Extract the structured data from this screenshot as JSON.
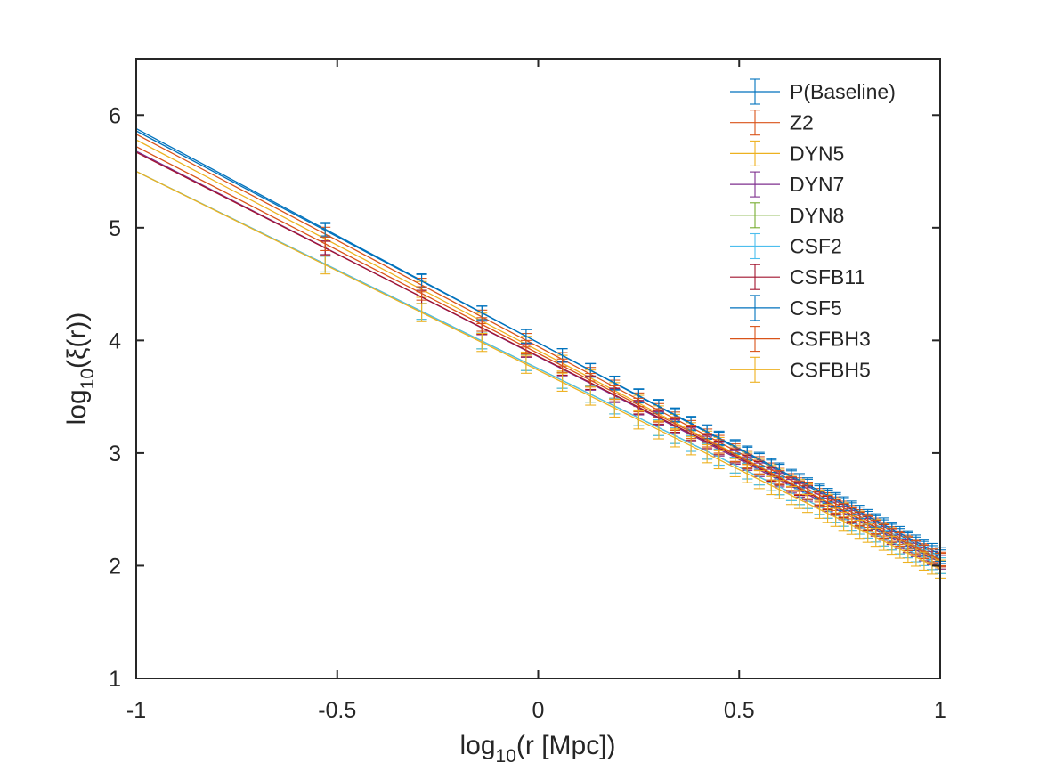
{
  "chart_data": {
    "type": "line",
    "title": "",
    "xlabel_main": "log",
    "xlabel_sub": "10",
    "xlabel_rest": "(r [Mpc])",
    "ylabel_main": "log",
    "ylabel_sub": "10",
    "ylabel_rest": "(ξ(r))",
    "xlim": [
      -1,
      1
    ],
    "ylim": [
      1,
      6.5
    ],
    "xticks": [
      -1,
      -0.5,
      0,
      0.5,
      1
    ],
    "xtick_labels": [
      "-1",
      "-0.5",
      "0",
      "0.5",
      "1"
    ],
    "yticks": [
      1,
      2,
      3,
      4,
      5,
      6
    ],
    "ytick_labels": [
      "1",
      "2",
      "3",
      "4",
      "5",
      "6"
    ],
    "grid": false,
    "legend_position": "top-right",
    "error_bar_sample_x": [
      -0.53,
      -0.29,
      -0.14,
      -0.03,
      0.06,
      0.13,
      0.19,
      0.25,
      0.3,
      0.34,
      0.38,
      0.42,
      0.45,
      0.49,
      0.52,
      0.55,
      0.58,
      0.6,
      0.63,
      0.65,
      0.67,
      0.7,
      0.72,
      0.74,
      0.76,
      0.78,
      0.8,
      0.82,
      0.84,
      0.86,
      0.88,
      0.9,
      0.92,
      0.94,
      0.96,
      0.98,
      1.0
    ],
    "series": [
      {
        "name": "P(Baseline)",
        "color": "#0072BD",
        "y_at_xmin": 5.88,
        "y_at_xmax": 2.08,
        "error": 0.06
      },
      {
        "name": "Z2",
        "color": "#D95319",
        "y_at_xmin": 5.83,
        "y_at_xmax": 2.06,
        "error": 0.06
      },
      {
        "name": "DYN5",
        "color": "#EDB120",
        "y_at_xmin": 5.78,
        "y_at_xmax": 2.04,
        "error": 0.07
      },
      {
        "name": "DYN7",
        "color": "#7E2F8E",
        "y_at_xmin": 5.68,
        "y_at_xmax": 2.03,
        "error": 0.06
      },
      {
        "name": "DYN8",
        "color": "#77AC30",
        "y_at_xmin": 5.5,
        "y_at_xmax": 2.0,
        "error": 0.07
      },
      {
        "name": "CSF2",
        "color": "#4DBEEE",
        "y_at_xmin": 5.5,
        "y_at_xmax": 2.0,
        "error": 0.07
      },
      {
        "name": "CSFB11",
        "color": "#A2142F",
        "y_at_xmin": 5.67,
        "y_at_xmax": 2.05,
        "error": 0.06
      },
      {
        "name": "CSF5",
        "color": "#0072BD",
        "y_at_xmin": 5.86,
        "y_at_xmax": 2.1,
        "error": 0.06
      },
      {
        "name": "CSFBH3",
        "color": "#D95319",
        "y_at_xmin": 5.72,
        "y_at_xmax": 2.05,
        "error": 0.06
      },
      {
        "name": "CSFBH5",
        "color": "#EDB120",
        "y_at_xmin": 5.5,
        "y_at_xmax": 1.97,
        "error": 0.08
      }
    ]
  }
}
